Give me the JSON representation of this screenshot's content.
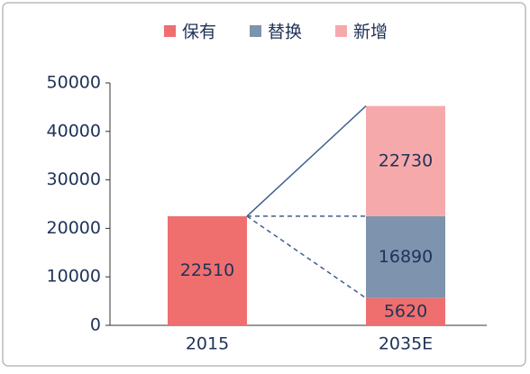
{
  "chart_data": {
    "type": "stacked_bar",
    "categories": [
      "2015",
      "2035E"
    ],
    "series": [
      {
        "name": "保有",
        "color": "#ef6f6f",
        "values": [
          22510,
          5620
        ]
      },
      {
        "name": "替换",
        "color": "#7d93ae",
        "values": [
          null,
          16890
        ]
      },
      {
        "name": "新增",
        "color": "#f6a9aa",
        "values": [
          null,
          22730
        ]
      }
    ],
    "ylim": [
      0,
      50000
    ],
    "yticks": [
      0,
      10000,
      20000,
      30000,
      40000,
      50000
    ],
    "legend": "top",
    "grid": false,
    "connectors": true
  }
}
